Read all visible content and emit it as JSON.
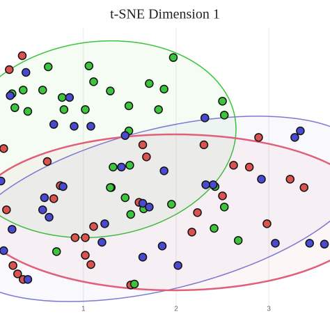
{
  "chart_data": {
    "type": "scatter",
    "title": "t-SNE Dimension 1",
    "xlim": [
      0.1,
      3.66
    ],
    "ylim": [
      0,
      3
    ],
    "xticks": [
      1,
      2,
      3
    ],
    "grid": true,
    "series": [
      {
        "color": "#d9534f",
        "x": [
          0.34,
          0.2,
          0.14,
          0.61,
          0.75,
          0.68,
          0.17,
          1.3,
          1.11,
          0.91,
          1.02,
          1.02,
          1.08,
          0.24,
          0.29,
          0.35,
          1.64,
          2.3,
          2.62,
          2.79,
          2.5,
          2.23,
          2.17,
          1.6,
          1.68,
          2.98,
          3.38,
          2.89,
          3.23,
          1.51
        ],
        "values": [
          2.7,
          2.55,
          1.7,
          1.56,
          1.3,
          1.16,
          1.04,
          1.28,
          0.86,
          0.74,
          0.74,
          0.55,
          0.45,
          0.44,
          0.35,
          0.29,
          1.74,
          1.74,
          1.52,
          1.5,
          1.19,
          1.01,
          0.8,
          1.12,
          1.61,
          0.89,
          1.28,
          1.82,
          1.37,
          0.23
        ]
      },
      {
        "color": "#3cc43c",
        "x": [
          1.97,
          1.06,
          0.62,
          1.11,
          0.35,
          0.23,
          0.56,
          1.71,
          1.87,
          0.77,
          1.29,
          0.26,
          0.4,
          0.79,
          1.02,
          1.49,
          1.81,
          2.5,
          2.52,
          1.49,
          1.32,
          1.5,
          1.29,
          1.45,
          1.65,
          1.95,
          1.51,
          2.42,
          2.52,
          2.41,
          0.71,
          2.67,
          1.55
        ],
        "values": [
          2.68,
          2.59,
          2.58,
          2.42,
          2.33,
          2.29,
          2.33,
          2.4,
          2.34,
          2.25,
          2.32,
          2.14,
          2.1,
          2.12,
          2.12,
          2.16,
          2.12,
          2.21,
          2.06,
          1.89,
          1.5,
          1.52,
          1.28,
          1.17,
          1.05,
          1.1,
          0.99,
          1.29,
          1.07,
          0.84,
          0.59,
          0.71,
          0.24
        ]
      },
      {
        "color": "#4a4ad0",
        "x": [
          0.38,
          0.21,
          0.85,
          0.9,
          0.68,
          1.08,
          1.45,
          2.31,
          3.34,
          3.28,
          1.41,
          1.87,
          2.4,
          2.32,
          2.92,
          0.78,
          0.58,
          0.11,
          0.63,
          0.56,
          0.23,
          0.14,
          1.23,
          1.2,
          1.64,
          1.71,
          1.85,
          1.64,
          2.02,
          3.07,
          3.44,
          3.6,
          0.4
        ],
        "values": [
          2.52,
          2.27,
          2.25,
          1.94,
          1.96,
          1.94,
          1.84,
          2.03,
          1.89,
          1.82,
          1.5,
          1.46,
          1.31,
          1.31,
          1.37,
          1.29,
          1.17,
          1.35,
          0.96,
          1.04,
          0.83,
          0.6,
          0.89,
          0.69,
          1.11,
          1.07,
          0.65,
          0.53,
          0.44,
          0.68,
          0.68,
          0.67,
          0.29
        ]
      }
    ]
  }
}
